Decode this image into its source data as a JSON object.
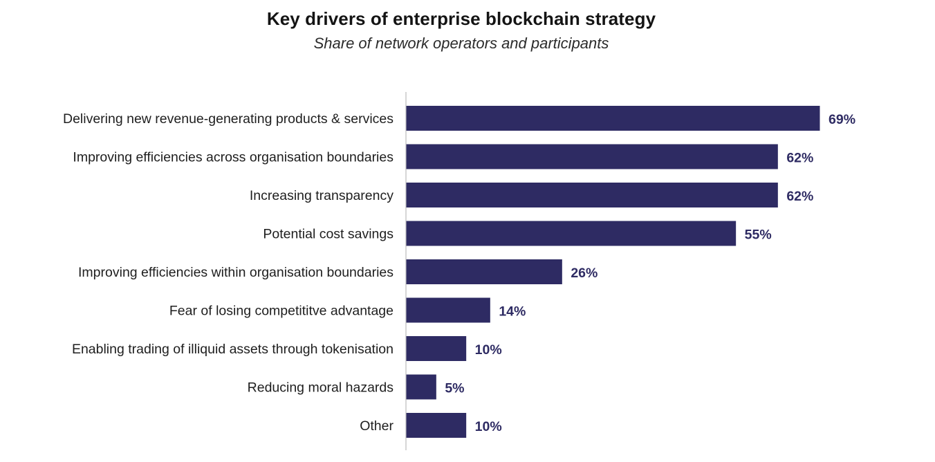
{
  "chart_data": {
    "type": "bar",
    "orientation": "horizontal",
    "title": "Key drivers of enterprise blockchain strategy",
    "subtitle": "Share of network operators and participants",
    "categories": [
      "Delivering new revenue-generating products & services",
      "Improving efficiencies across organisation boundaries",
      "Increasing transparency",
      "Potential cost savings",
      "Improving efficiencies within organisation boundaries",
      "Fear of losing competititve advantage",
      "Enabling trading of illiquid assets through tokenisation",
      "Reducing moral hazards",
      "Other"
    ],
    "values": [
      69,
      62,
      62,
      55,
      26,
      14,
      10,
      5,
      10
    ],
    "value_labels": [
      "69%",
      "62%",
      "62%",
      "55%",
      "26%",
      "14%",
      "10%",
      "5%",
      "10%"
    ],
    "xlim": [
      0,
      69
    ],
    "xlabel": "",
    "ylabel": "",
    "grid": false,
    "bar_color": "#2e2b63",
    "label_color": "#2e2b63",
    "axis_color": "#c8c8c8"
  }
}
